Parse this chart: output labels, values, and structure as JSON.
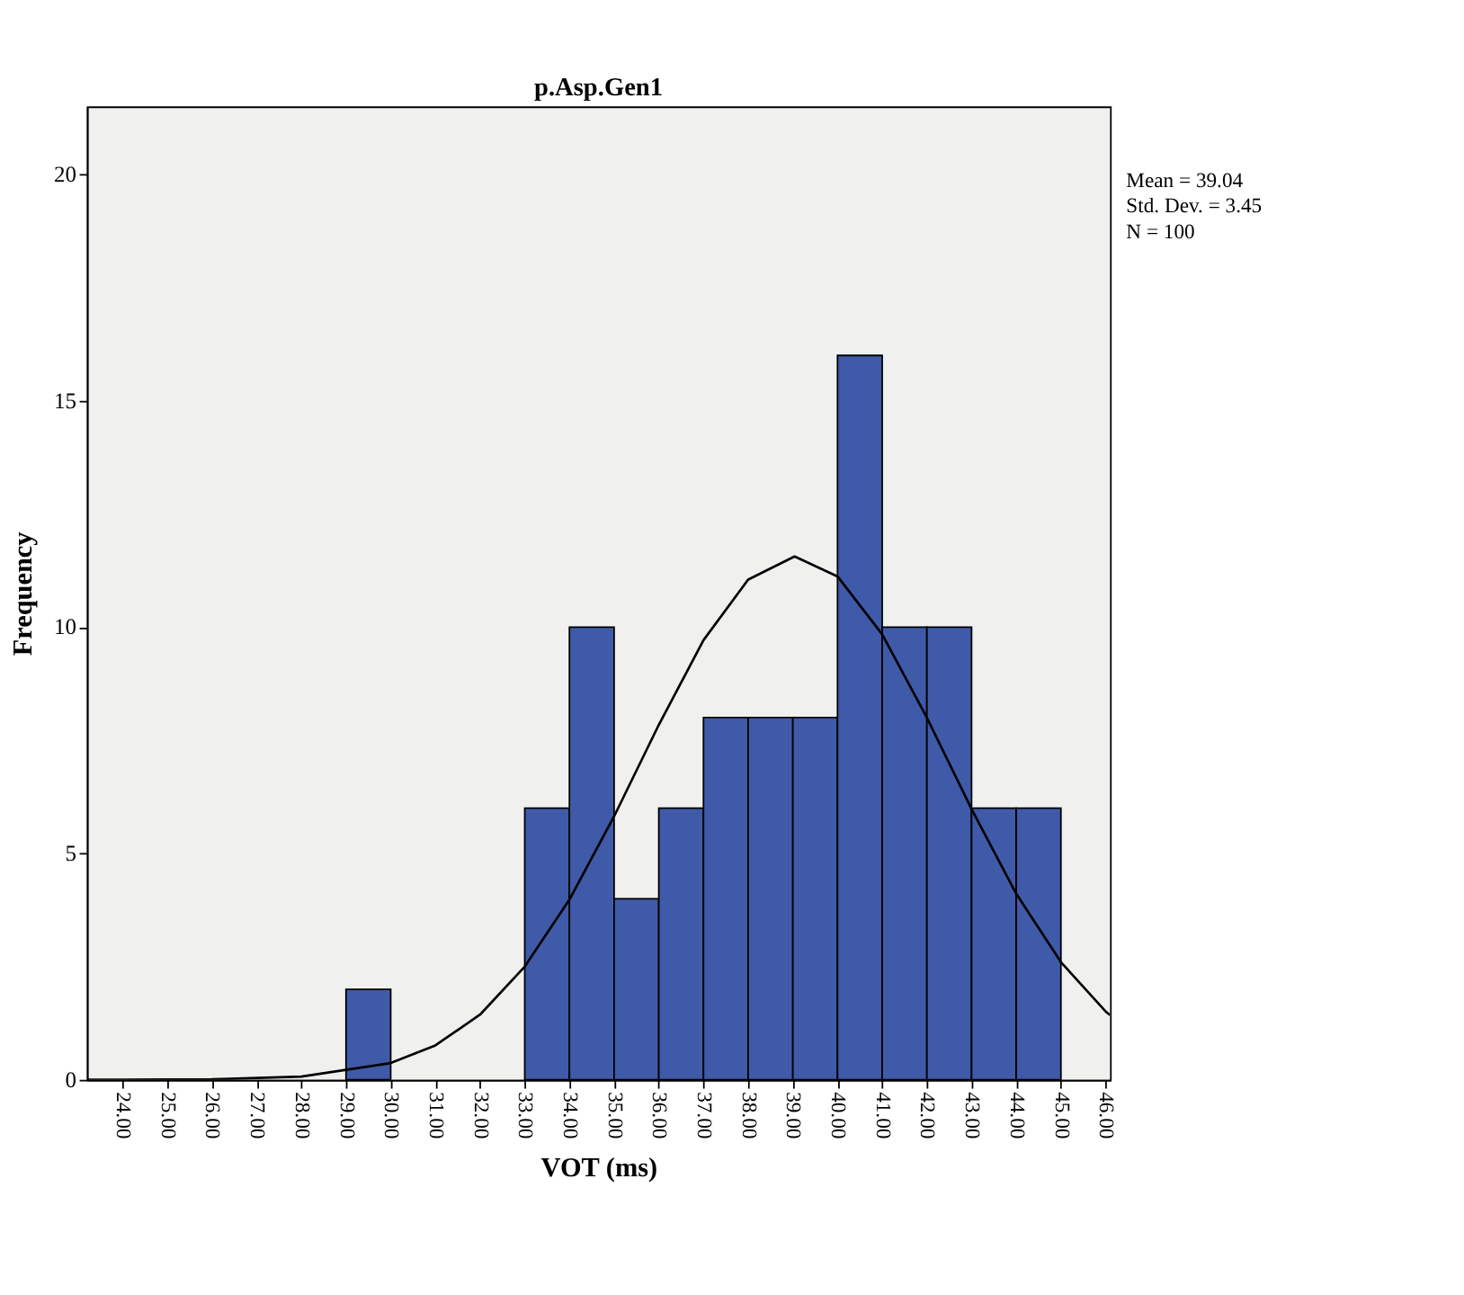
{
  "chart_data": {
    "type": "histogram",
    "title": "p.Asp.Gen1",
    "xlabel": "VOT (ms)",
    "ylabel": "Frequency",
    "bins": [
      29,
      30,
      31,
      32,
      33,
      34,
      35,
      36,
      37,
      38,
      39,
      40,
      41,
      42,
      43,
      44,
      45
    ],
    "values": [
      2,
      0,
      0,
      0,
      6,
      10,
      4,
      6,
      8,
      8,
      8,
      16,
      10,
      10,
      6,
      6
    ],
    "color": "#3f5aa8",
    "series": [
      {
        "type": "line",
        "color": "#000000",
        "x": [
          23.2,
          24,
          26,
          28,
          30,
          31,
          32,
          33,
          34,
          35,
          36,
          37,
          38,
          39.04,
          40,
          41,
          42,
          43,
          44,
          45,
          46,
          46.1
        ],
        "values": [
          0.0,
          0.0,
          0.01,
          0.07,
          0.37,
          0.76,
          1.44,
          2.5,
          3.98,
          5.82,
          7.84,
          9.71,
          11.05,
          11.56,
          11.12,
          9.84,
          8.0,
          5.98,
          4.11,
          2.6,
          1.51,
          1.43
        ]
      }
    ],
    "xlim": [
      23.2,
      46.1
    ],
    "xticks": [
      {
        "value": 24,
        "label": "24.00"
      },
      {
        "value": 25,
        "label": "25.00"
      },
      {
        "value": 26,
        "label": "26.00"
      },
      {
        "value": 27,
        "label": "27.00"
      },
      {
        "value": 28,
        "label": "28.00"
      },
      {
        "value": 29,
        "label": "29.00"
      },
      {
        "value": 30,
        "label": "30.00"
      },
      {
        "value": 31,
        "label": "31.00"
      },
      {
        "value": 32,
        "label": "32.00"
      },
      {
        "value": 33,
        "label": "33.00"
      },
      {
        "value": 34,
        "label": "34.00"
      },
      {
        "value": 35,
        "label": "35.00"
      },
      {
        "value": 36,
        "label": "36.00"
      },
      {
        "value": 37,
        "label": "37.00"
      },
      {
        "value": 38,
        "label": "38.00"
      },
      {
        "value": 39,
        "label": "39.00"
      },
      {
        "value": 40,
        "label": "40.00"
      },
      {
        "value": 41,
        "label": "41.00"
      },
      {
        "value": 42,
        "label": "42.00"
      },
      {
        "value": 43,
        "label": "43.00"
      },
      {
        "value": 44,
        "label": "44.00"
      },
      {
        "value": 45,
        "label": "45.00"
      },
      {
        "value": 46,
        "label": "46.00"
      }
    ],
    "ylim": [
      0,
      21.5
    ],
    "yticks": [
      0,
      5,
      10,
      15,
      20
    ],
    "grid": false,
    "annotations": [
      "Mean = 39.04",
      "Std. Dev. = 3.45",
      "N = 100"
    ]
  }
}
